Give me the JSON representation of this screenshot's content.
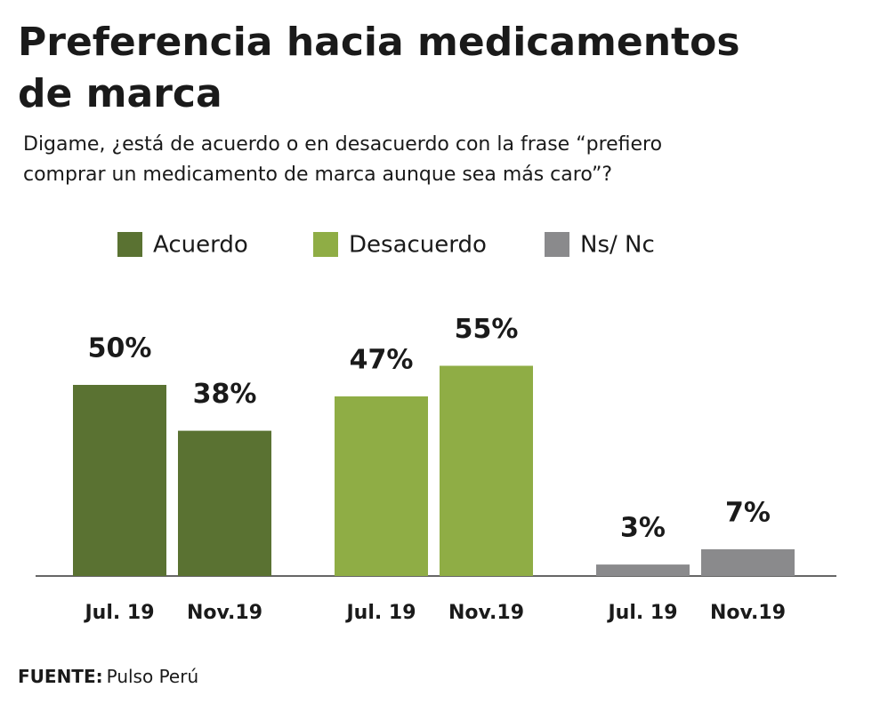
{
  "chart_data": {
    "type": "grouped_bar",
    "title": [
      "Preferencia hacia medicamentos",
      "de marca"
    ],
    "subtitle": [
      "Digame, ¿está de acuerdo o en desacuerdo con la frase “prefiero",
      "comprar un medicamento de marca aunque sea más caro”?"
    ],
    "categories": [
      "Jul. 19",
      "Nov.19"
    ],
    "series": [
      {
        "name": "Acuerdo",
        "color": "#5a7232",
        "values": [
          50,
          38
        ],
        "value_labels": [
          "50%",
          "38%"
        ]
      },
      {
        "name": "Desacuerdo",
        "color": "#8fad45",
        "values": [
          47,
          55
        ],
        "value_labels": [
          "47%",
          "55%"
        ]
      },
      {
        "name": "Ns/ Nc",
        "color": "#8a8a8c",
        "values": [
          3,
          7
        ],
        "value_labels": [
          "3%",
          "7%"
        ]
      }
    ],
    "source": {
      "label": "FUENTE:",
      "text": "Pulso Perú"
    }
  }
}
